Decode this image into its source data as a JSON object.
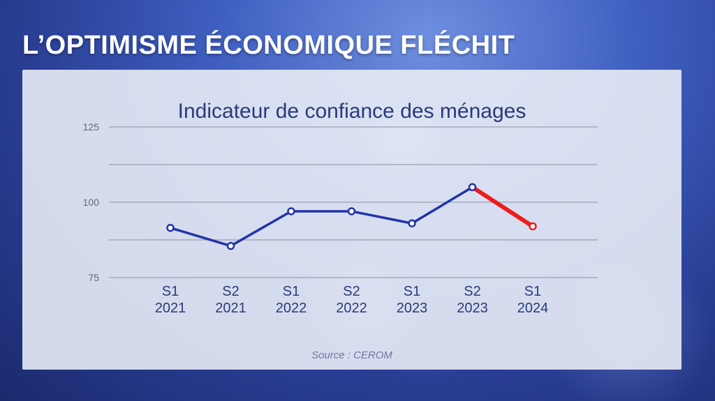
{
  "headline": "L’OPTIMISME ÉCONOMIQUE FLÉCHIT",
  "chart_data": {
    "type": "line",
    "title": "Indicateur de confiance des ménages",
    "categories": [
      [
        "S1",
        "2021"
      ],
      [
        "S2",
        "2021"
      ],
      [
        "S1",
        "2022"
      ],
      [
        "S2",
        "2022"
      ],
      [
        "S1",
        "2023"
      ],
      [
        "S2",
        "2023"
      ],
      [
        "S1",
        "2024"
      ]
    ],
    "values": [
      91.5,
      85.5,
      97,
      97,
      93,
      105,
      92
    ],
    "highlight_last_segment": true,
    "ylim": [
      75,
      125
    ],
    "yticks": [
      75,
      100,
      125
    ],
    "grid": true,
    "colors": {
      "line": "#2233aa",
      "highlight": "#ee1c1c",
      "grid": "#9aa0b0",
      "tick": "#666677",
      "xtick": "#2b3a78"
    },
    "source": "Source : CEROM"
  }
}
